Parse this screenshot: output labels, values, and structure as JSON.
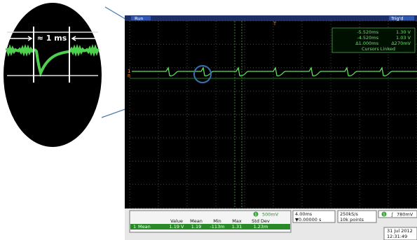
{
  "inset": {
    "label": "≈ 1 ms"
  },
  "status": {
    "run": "Run",
    "trigger": "Trig'd"
  },
  "markers": {
    "channel": "1",
    "reference": "R",
    "trigger": "T"
  },
  "cursors": {
    "t1": "-5.520ms",
    "v1": "1.30 V",
    "t2": "-4.520ms",
    "v2": "1.03 V",
    "dt": "Δ1.000ms",
    "dv": "Δ270mV",
    "mode": "Cursors Linked"
  },
  "channel_scale": {
    "channel": "1",
    "scale": "500mV"
  },
  "measurements": {
    "headers": [
      "Value",
      "Mean",
      "Min",
      "Max",
      "Std Dev"
    ],
    "rows": [
      {
        "channel": "1",
        "name": "Mean",
        "cells": [
          "1.19 V",
          "1.19",
          "-113m",
          "1.31",
          "1.23m"
        ]
      }
    ]
  },
  "timebase": {
    "scale": "4.00ms",
    "position": "▼0.00000 s"
  },
  "acquisition": {
    "rate": "250kS/s",
    "points": "10k points"
  },
  "trigger": {
    "channel": "1",
    "slope": "∫",
    "level": "780mV"
  },
  "clock": {
    "date": "31 Jul 2012",
    "time": "12:31:49"
  }
}
